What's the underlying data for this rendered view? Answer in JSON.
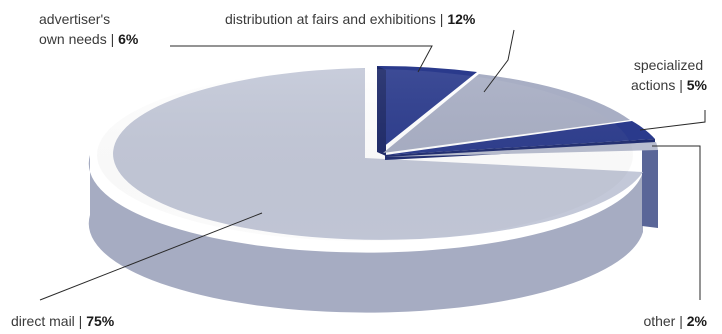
{
  "chart_data": {
    "type": "pie",
    "style": "3d-exploded",
    "slices": [
      {
        "name": "direct mail",
        "value": 75,
        "label": "direct mail | ",
        "pct_label": "75%",
        "color": "#c3c8d8",
        "side_color": "#a6acc2"
      },
      {
        "name": "advertiser's own needs",
        "value": 6,
        "label_lines": [
          "advertiser's",
          "own needs | "
        ],
        "pct_label": "6%",
        "color": "#2a3a8c",
        "side_color": "#1f2c70"
      },
      {
        "name": "distribution at fairs and exhibitions",
        "value": 12,
        "label": "distribution at fairs and exhibitions | ",
        "pct_label": "12%",
        "color": "#a8aec4",
        "side_color": "#8f95ad"
      },
      {
        "name": "specialized actions",
        "value": 5,
        "label_lines": [
          "specialized",
          "actions | "
        ],
        "pct_label": "5%",
        "color": "#2a3a8c",
        "side_color": "#22307a"
      },
      {
        "name": "other",
        "value": 2,
        "label": "other | ",
        "pct_label": "2%",
        "color": "#b9bed0",
        "side_color": "#5a6698"
      }
    ],
    "legend": "none"
  }
}
